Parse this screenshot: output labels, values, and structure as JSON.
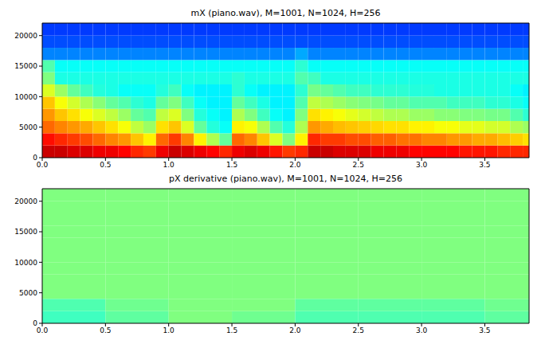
{
  "chart_data": [
    {
      "type": "heatmap",
      "title": "mX (piano.wav), M=1001, N=1024, H=256",
      "xlim": [
        0,
        3.85
      ],
      "xticks": [
        {
          "value": 0,
          "label": "0.0"
        },
        0.5,
        {
          "value": 1,
          "label": "1.0"
        },
        1.5,
        {
          "value": 2,
          "label": "2.0"
        },
        2.5,
        {
          "value": 3,
          "label": "3.0"
        },
        3.5
      ],
      "ylim": [
        0,
        22050
      ],
      "yticks": [
        0,
        5000,
        10000,
        15000,
        20000
      ],
      "zlim": [
        -130,
        -20
      ],
      "x_bins": [
        0,
        0.1,
        0.2,
        0.3,
        0.4,
        0.5,
        0.6,
        0.7,
        0.8,
        0.9,
        1.0,
        1.1,
        1.2,
        1.3,
        1.4,
        1.5,
        1.6,
        1.7,
        1.8,
        1.9,
        2.0,
        2.1,
        2.2,
        2.3,
        2.4,
        2.5,
        2.6,
        2.7,
        2.8,
        2.9,
        3.0,
        3.1,
        3.2,
        3.3,
        3.4,
        3.5,
        3.6,
        3.7,
        3.8,
        3.9
      ],
      "y_bins": [
        0,
        2000,
        4000,
        6000,
        8000,
        10000,
        12000,
        14000,
        16000,
        18000,
        20000,
        22050
      ],
      "cells": [
        [
          -28,
          -28,
          -30,
          -30,
          -32,
          -32,
          -34,
          -38,
          -40,
          -32,
          -28,
          -30,
          -32,
          -34,
          -38,
          -32,
          -30,
          -32,
          -36,
          -40,
          -38,
          -28,
          -28,
          -30,
          -30,
          -30,
          -32,
          -32,
          -32,
          -34,
          -34,
          -34,
          -34,
          -36,
          -36,
          -36,
          -38,
          -38,
          -38
        ],
        [
          -35,
          -38,
          -40,
          -42,
          -45,
          -48,
          -50,
          -55,
          -60,
          -45,
          -40,
          -48,
          -60,
          -70,
          -78,
          -45,
          -48,
          -55,
          -65,
          -75,
          -60,
          -38,
          -40,
          -40,
          -42,
          -42,
          -44,
          -44,
          -46,
          -46,
          -48,
          -48,
          -50,
          -50,
          -52,
          -52,
          -54,
          -56,
          -58
        ],
        [
          -45,
          -48,
          -50,
          -52,
          -55,
          -58,
          -62,
          -68,
          -72,
          -58,
          -55,
          -65,
          -78,
          -85,
          -88,
          -60,
          -62,
          -70,
          -80,
          -85,
          -70,
          -50,
          -52,
          -54,
          -55,
          -56,
          -57,
          -58,
          -58,
          -60,
          -60,
          -62,
          -62,
          -64,
          -64,
          -66,
          -66,
          -70,
          -72
        ],
        [
          -50,
          -55,
          -58,
          -62,
          -65,
          -68,
          -72,
          -78,
          -80,
          -68,
          -65,
          -75,
          -85,
          -88,
          -90,
          -70,
          -75,
          -82,
          -88,
          -90,
          -75,
          -58,
          -60,
          -62,
          -64,
          -66,
          -68,
          -70,
          -70,
          -72,
          -72,
          -74,
          -74,
          -75,
          -75,
          -76,
          -76,
          -80,
          -84
        ],
        [
          -55,
          -62,
          -66,
          -70,
          -74,
          -78,
          -80,
          -84,
          -86,
          -78,
          -75,
          -82,
          -88,
          -90,
          -90,
          -78,
          -82,
          -86,
          -90,
          -90,
          -80,
          -68,
          -70,
          -72,
          -74,
          -75,
          -76,
          -78,
          -78,
          -80,
          -80,
          -80,
          -82,
          -82,
          -82,
          -84,
          -84,
          -86,
          -88
        ],
        [
          -65,
          -72,
          -78,
          -82,
          -85,
          -86,
          -88,
          -88,
          -88,
          -85,
          -82,
          -88,
          -90,
          -90,
          -90,
          -84,
          -88,
          -90,
          -90,
          -90,
          -84,
          -76,
          -78,
          -80,
          -82,
          -82,
          -84,
          -84,
          -84,
          -85,
          -85,
          -86,
          -86,
          -86,
          -86,
          -86,
          -86,
          -88,
          -90
        ],
        [
          -75,
          -86,
          -86,
          -86,
          -86,
          -86,
          -86,
          -86,
          -86,
          -86,
          -86,
          -86,
          -86,
          -86,
          -86,
          -84,
          -86,
          -86,
          -86,
          -86,
          -80,
          -82,
          -86,
          -86,
          -86,
          -86,
          -86,
          -86,
          -86,
          -86,
          -86,
          -86,
          -86,
          -86,
          -86,
          -86,
          -86,
          -86,
          -86
        ],
        [
          -80,
          -88,
          -88,
          -88,
          -88,
          -88,
          -88,
          -88,
          -88,
          -88,
          -88,
          -88,
          -88,
          -88,
          -88,
          -88,
          -88,
          -88,
          -88,
          -88,
          -84,
          -88,
          -88,
          -88,
          -88,
          -88,
          -88,
          -88,
          -88,
          -88,
          -88,
          -88,
          -88,
          -88,
          -88,
          -88,
          -88,
          -88,
          -88
        ],
        [
          -102,
          -102,
          -102,
          -102,
          -102,
          -102,
          -102,
          -102,
          -102,
          -102,
          -102,
          -102,
          -102,
          -102,
          -102,
          -102,
          -102,
          -102,
          -102,
          -102,
          -98,
          -102,
          -102,
          -102,
          -102,
          -102,
          -102,
          -102,
          -102,
          -102,
          -102,
          -102,
          -102,
          -102,
          -102,
          -102,
          -102,
          -102,
          -102
        ],
        [
          -108,
          -108,
          -108,
          -108,
          -108,
          -108,
          -108,
          -108,
          -108,
          -108,
          -108,
          -108,
          -108,
          -108,
          -108,
          -108,
          -108,
          -108,
          -108,
          -108,
          -108,
          -108,
          -108,
          -108,
          -108,
          -108,
          -108,
          -108,
          -108,
          -108,
          -108,
          -108,
          -108,
          -108,
          -108,
          -108,
          -108,
          -108,
          -108
        ],
        [
          -110,
          -110,
          -110,
          -110,
          -110,
          -110,
          -110,
          -110,
          -110,
          -110,
          -110,
          -110,
          -110,
          -110,
          -110,
          -110,
          -110,
          -110,
          -110,
          -110,
          -110,
          -110,
          -110,
          -110,
          -110,
          -110,
          -110,
          -110,
          -110,
          -110,
          -110,
          -110,
          -110,
          -110,
          -110,
          -110,
          -110,
          -110,
          -110
        ]
      ]
    },
    {
      "type": "heatmap",
      "title": "pX derivative (piano.wav), M=1001, N=1024, H=256",
      "xlim": [
        0,
        3.85
      ],
      "xticks": [
        {
          "value": 0,
          "label": "0.0"
        },
        0.5,
        {
          "value": 1,
          "label": "1.0"
        },
        1.5,
        {
          "value": 2,
          "label": "2.0"
        },
        2.5,
        {
          "value": 3,
          "label": "3.0"
        },
        3.5
      ],
      "ylim": [
        0,
        22050
      ],
      "yticks": [
        0,
        5000,
        10000,
        15000,
        20000
      ],
      "zlim": [
        -3.14,
        3.14
      ],
      "x_bins": [
        0,
        0.5,
        1,
        1.5,
        2,
        2.5,
        3,
        3.5,
        4
      ],
      "y_bins": [
        0,
        2000,
        4000,
        6000,
        8000,
        10000,
        12000,
        14000,
        16000,
        18000,
        20000,
        22050
      ],
      "cells": [
        [
          -0.4,
          -0.2,
          0,
          -0.1,
          -0.3,
          -0.3,
          -0.3,
          -0.2
        ],
        [
          -0.3,
          -0.1,
          0,
          0,
          -0.2,
          -0.2,
          -0.2,
          -0.1
        ],
        [
          0,
          0,
          0,
          0,
          0,
          0,
          0,
          0
        ],
        [
          0,
          0,
          0,
          0,
          0,
          0,
          0,
          0
        ],
        [
          0,
          0,
          0,
          0,
          0,
          0,
          0,
          0
        ],
        [
          0,
          0,
          0,
          0,
          0,
          0,
          0,
          0
        ],
        [
          0,
          0,
          0,
          0,
          0,
          0,
          0,
          0
        ],
        [
          0,
          0,
          0,
          0,
          0,
          0,
          0,
          0
        ],
        [
          0,
          0,
          0,
          0,
          0,
          0,
          0,
          0
        ],
        [
          0,
          0,
          0,
          0,
          0,
          0,
          0,
          0
        ],
        [
          0,
          0,
          0,
          0,
          0,
          0,
          0,
          0
        ]
      ]
    }
  ]
}
